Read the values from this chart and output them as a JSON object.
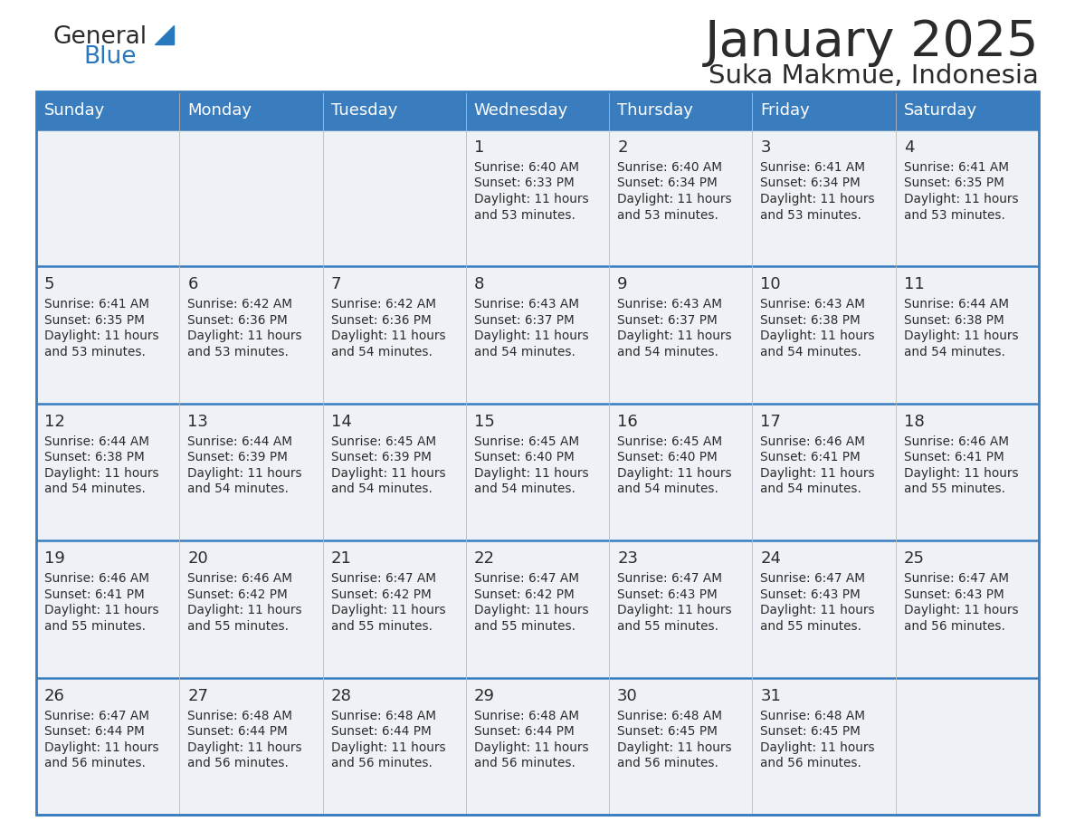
{
  "title": "January 2025",
  "subtitle": "Suka Makmue, Indonesia",
  "days_of_week": [
    "Sunday",
    "Monday",
    "Tuesday",
    "Wednesday",
    "Thursday",
    "Friday",
    "Saturday"
  ],
  "header_bg": "#3a7dbf",
  "header_text": "#ffffff",
  "row_bg": "#eef2f7",
  "cell_border": "#3a7dbf",
  "title_color": "#2b2b2b",
  "subtitle_color": "#2b2b2b",
  "day_number_color": "#2b2b2b",
  "cell_text_color": "#2b2b2b",
  "logo_general_color": "#2b2b2b",
  "logo_blue_color": "#2878be",
  "calendar": [
    [
      null,
      null,
      null,
      {
        "day": 1,
        "sunrise": "6:40 AM",
        "sunset": "6:33 PM",
        "daylight": "11 hours and 53 minutes"
      },
      {
        "day": 2,
        "sunrise": "6:40 AM",
        "sunset": "6:34 PM",
        "daylight": "11 hours and 53 minutes"
      },
      {
        "day": 3,
        "sunrise": "6:41 AM",
        "sunset": "6:34 PM",
        "daylight": "11 hours and 53 minutes"
      },
      {
        "day": 4,
        "sunrise": "6:41 AM",
        "sunset": "6:35 PM",
        "daylight": "11 hours and 53 minutes"
      }
    ],
    [
      {
        "day": 5,
        "sunrise": "6:41 AM",
        "sunset": "6:35 PM",
        "daylight": "11 hours and 53 minutes"
      },
      {
        "day": 6,
        "sunrise": "6:42 AM",
        "sunset": "6:36 PM",
        "daylight": "11 hours and 53 minutes"
      },
      {
        "day": 7,
        "sunrise": "6:42 AM",
        "sunset": "6:36 PM",
        "daylight": "11 hours and 54 minutes"
      },
      {
        "day": 8,
        "sunrise": "6:43 AM",
        "sunset": "6:37 PM",
        "daylight": "11 hours and 54 minutes"
      },
      {
        "day": 9,
        "sunrise": "6:43 AM",
        "sunset": "6:37 PM",
        "daylight": "11 hours and 54 minutes"
      },
      {
        "day": 10,
        "sunrise": "6:43 AM",
        "sunset": "6:38 PM",
        "daylight": "11 hours and 54 minutes"
      },
      {
        "day": 11,
        "sunrise": "6:44 AM",
        "sunset": "6:38 PM",
        "daylight": "11 hours and 54 minutes"
      }
    ],
    [
      {
        "day": 12,
        "sunrise": "6:44 AM",
        "sunset": "6:38 PM",
        "daylight": "11 hours and 54 minutes"
      },
      {
        "day": 13,
        "sunrise": "6:44 AM",
        "sunset": "6:39 PM",
        "daylight": "11 hours and 54 minutes"
      },
      {
        "day": 14,
        "sunrise": "6:45 AM",
        "sunset": "6:39 PM",
        "daylight": "11 hours and 54 minutes"
      },
      {
        "day": 15,
        "sunrise": "6:45 AM",
        "sunset": "6:40 PM",
        "daylight": "11 hours and 54 minutes"
      },
      {
        "day": 16,
        "sunrise": "6:45 AM",
        "sunset": "6:40 PM",
        "daylight": "11 hours and 54 minutes"
      },
      {
        "day": 17,
        "sunrise": "6:46 AM",
        "sunset": "6:41 PM",
        "daylight": "11 hours and 54 minutes"
      },
      {
        "day": 18,
        "sunrise": "6:46 AM",
        "sunset": "6:41 PM",
        "daylight": "11 hours and 55 minutes"
      }
    ],
    [
      {
        "day": 19,
        "sunrise": "6:46 AM",
        "sunset": "6:41 PM",
        "daylight": "11 hours and 55 minutes"
      },
      {
        "day": 20,
        "sunrise": "6:46 AM",
        "sunset": "6:42 PM",
        "daylight": "11 hours and 55 minutes"
      },
      {
        "day": 21,
        "sunrise": "6:47 AM",
        "sunset": "6:42 PM",
        "daylight": "11 hours and 55 minutes"
      },
      {
        "day": 22,
        "sunrise": "6:47 AM",
        "sunset": "6:42 PM",
        "daylight": "11 hours and 55 minutes"
      },
      {
        "day": 23,
        "sunrise": "6:47 AM",
        "sunset": "6:43 PM",
        "daylight": "11 hours and 55 minutes"
      },
      {
        "day": 24,
        "sunrise": "6:47 AM",
        "sunset": "6:43 PM",
        "daylight": "11 hours and 55 minutes"
      },
      {
        "day": 25,
        "sunrise": "6:47 AM",
        "sunset": "6:43 PM",
        "daylight": "11 hours and 56 minutes"
      }
    ],
    [
      {
        "day": 26,
        "sunrise": "6:47 AM",
        "sunset": "6:44 PM",
        "daylight": "11 hours and 56 minutes"
      },
      {
        "day": 27,
        "sunrise": "6:48 AM",
        "sunset": "6:44 PM",
        "daylight": "11 hours and 56 minutes"
      },
      {
        "day": 28,
        "sunrise": "6:48 AM",
        "sunset": "6:44 PM",
        "daylight": "11 hours and 56 minutes"
      },
      {
        "day": 29,
        "sunrise": "6:48 AM",
        "sunset": "6:44 PM",
        "daylight": "11 hours and 56 minutes"
      },
      {
        "day": 30,
        "sunrise": "6:48 AM",
        "sunset": "6:45 PM",
        "daylight": "11 hours and 56 minutes"
      },
      {
        "day": 31,
        "sunrise": "6:48 AM",
        "sunset": "6:45 PM",
        "daylight": "11 hours and 56 minutes"
      },
      null
    ]
  ]
}
